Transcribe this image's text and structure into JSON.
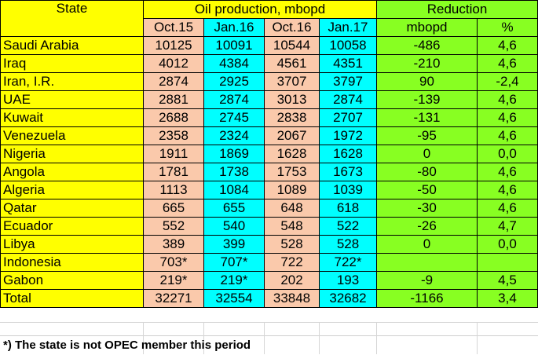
{
  "header": {
    "state": "State",
    "oil_production": "Oil production, mbopd",
    "reduction": "Reduction",
    "oct15": "Oct.15",
    "jan16": "Jan.16",
    "oct16": "Oct.16",
    "jan17": "Jan.17",
    "mbopd": "mbopd",
    "percent": "%"
  },
  "rows": [
    {
      "state": "Saudi Arabia",
      "oct15": "10125",
      "jan16": "10091",
      "oct16": "10544",
      "jan17": "10058",
      "mbopd": "-486",
      "pct": "4,6"
    },
    {
      "state": "Iraq",
      "oct15": "4012",
      "jan16": "4384",
      "oct16": "4561",
      "jan17": "4351",
      "mbopd": "-210",
      "pct": "4,6"
    },
    {
      "state": "Iran, I.R.",
      "oct15": "2874",
      "jan16": "2925",
      "oct16": "3707",
      "jan17": "3797",
      "mbopd": "90",
      "pct": "-2,4"
    },
    {
      "state": "UAE",
      "oct15": "2881",
      "jan16": "2874",
      "oct16": "3013",
      "jan17": "2874",
      "mbopd": "-139",
      "pct": "4,6"
    },
    {
      "state": "Kuwait",
      "oct15": "2688",
      "jan16": "2745",
      "oct16": "2838",
      "jan17": "2707",
      "mbopd": "-131",
      "pct": "4,6"
    },
    {
      "state": "Venezuela",
      "oct15": "2358",
      "jan16": "2324",
      "oct16": "2067",
      "jan17": "1972",
      "mbopd": "-95",
      "pct": "4,6"
    },
    {
      "state": "Nigeria",
      "oct15": "1911",
      "jan16": "1869",
      "oct16": "1628",
      "jan17": "1628",
      "mbopd": "0",
      "pct": "0,0"
    },
    {
      "state": "Angola",
      "oct15": "1781",
      "jan16": "1738",
      "oct16": "1753",
      "jan17": "1673",
      "mbopd": "-80",
      "pct": "4,6"
    },
    {
      "state": "Algeria",
      "oct15": "1113",
      "jan16": "1084",
      "oct16": "1089",
      "jan17": "1039",
      "mbopd": "-50",
      "pct": "4,6"
    },
    {
      "state": "Qatar",
      "oct15": "665",
      "jan16": "655",
      "oct16": "648",
      "jan17": "618",
      "mbopd": "-30",
      "pct": "4,6"
    },
    {
      "state": "Ecuador",
      "oct15": "552",
      "jan16": "540",
      "oct16": "548",
      "jan17": "522",
      "mbopd": "-26",
      "pct": "4,7"
    },
    {
      "state": "Libya",
      "oct15": "389",
      "jan16": "399",
      "oct16": "528",
      "jan17": "528",
      "mbopd": "0",
      "pct": "0,0"
    },
    {
      "state": "Indonesia",
      "oct15": "703*",
      "jan16": "707*",
      "oct16": "722",
      "jan17": "722*",
      "mbopd": "",
      "pct": ""
    },
    {
      "state": "Gabon",
      "oct15": "219*",
      "jan16": "219*",
      "oct16": "202",
      "jan17": "193",
      "mbopd": "-9",
      "pct": "4,5"
    },
    {
      "state": "Total",
      "oct15": "32271",
      "jan16": "32554",
      "oct16": "33848",
      "jan17": "32682",
      "mbopd": "-1166",
      "pct": "3,4"
    }
  ],
  "footnote": "*) The state is not OPEC member this period",
  "colors": {
    "state": "#ffff00",
    "oct": "#fac9ab",
    "jan": "#00ffff",
    "reduction": "#88ff22"
  }
}
